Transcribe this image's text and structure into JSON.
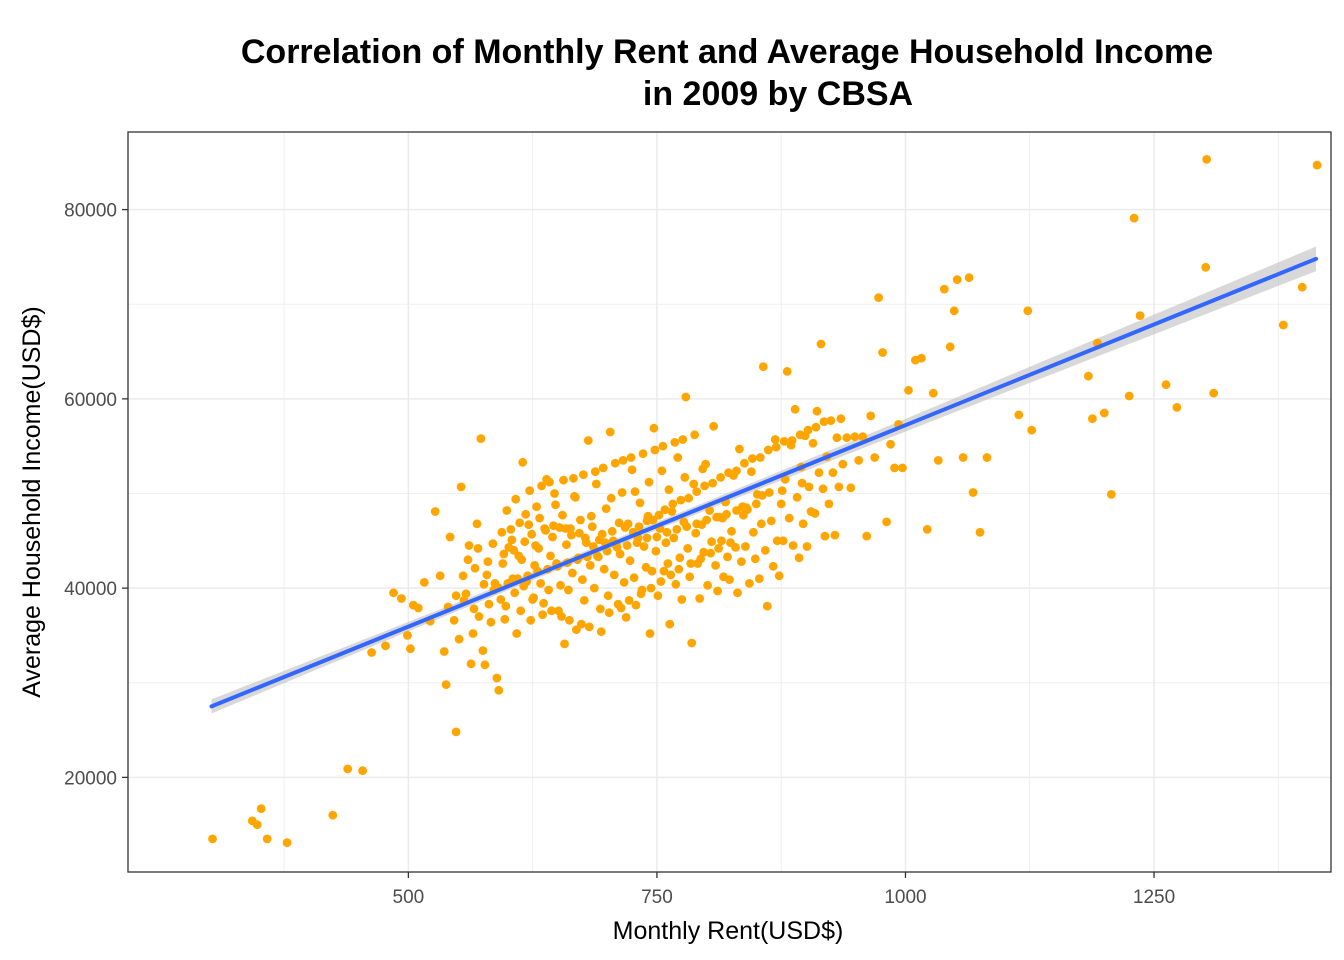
{
  "chart_data": {
    "type": "scatter",
    "title_lines": [
      "Correlation of Monthly Rent and Average Household Income",
      "in 2009 by CBSA"
    ],
    "xlabel": "Monthly Rent(USD$)",
    "ylabel": "Average Household Income(USD$)",
    "xlim": [
      218,
      1428
    ],
    "ylim": [
      10000,
      88200
    ],
    "xticks": [
      500,
      750,
      1000,
      1250
    ],
    "yticks": [
      20000,
      40000,
      60000,
      80000
    ],
    "grid": true,
    "colors": {
      "points": "#FFA500",
      "fit_line": "#3366FF",
      "confidence_band": "#BEBEBE",
      "grid": "#EBEBEB",
      "panel_border": "#333333"
    },
    "fit": {
      "method": "linear",
      "x_range": [
        302,
        1413
      ],
      "start_y": 27500,
      "end_y": 74800,
      "ci_halfwidth_ends": 1300,
      "ci_halfwidth_center": 400,
      "ci_center_x": 680
    },
    "points": [
      [
        303,
        13500
      ],
      [
        343,
        15400
      ],
      [
        348,
        15000
      ],
      [
        352,
        16700
      ],
      [
        358,
        13500
      ],
      [
        378,
        13100
      ],
      [
        424,
        16000
      ],
      [
        439,
        20900
      ],
      [
        454,
        20700
      ],
      [
        463,
        33200
      ],
      [
        477,
        33900
      ],
      [
        485,
        39500
      ],
      [
        493,
        38900
      ],
      [
        499,
        35000
      ],
      [
        502,
        33600
      ],
      [
        505,
        38200
      ],
      [
        510,
        37900
      ],
      [
        516,
        40600
      ],
      [
        522,
        36500
      ],
      [
        527,
        48100
      ],
      [
        532,
        41300
      ],
      [
        536,
        33300
      ],
      [
        538,
        29800
      ],
      [
        540,
        38000
      ],
      [
        542,
        45400
      ],
      [
        546,
        36600
      ],
      [
        548,
        24800
      ],
      [
        551,
        34600
      ],
      [
        553,
        50700
      ],
      [
        555,
        41300
      ],
      [
        558,
        39400
      ],
      [
        561,
        44500
      ],
      [
        563,
        32000
      ],
      [
        565,
        35200
      ],
      [
        567,
        42100
      ],
      [
        569,
        46800
      ],
      [
        571,
        37000
      ],
      [
        573,
        55800
      ],
      [
        575,
        33400
      ],
      [
        577,
        31900
      ],
      [
        579,
        41400
      ],
      [
        581,
        38300
      ],
      [
        583,
        36400
      ],
      [
        585,
        44700
      ],
      [
        587,
        40500
      ],
      [
        589,
        30500
      ],
      [
        591,
        29200
      ],
      [
        593,
        38800
      ],
      [
        595,
        42600
      ],
      [
        597,
        36700
      ],
      [
        599,
        48200
      ],
      [
        601,
        44300
      ],
      [
        603,
        46200
      ],
      [
        605,
        41000
      ],
      [
        607,
        39500
      ],
      [
        609,
        35200
      ],
      [
        611,
        43400
      ],
      [
        613,
        37600
      ],
      [
        615,
        53300
      ],
      [
        617,
        44900
      ],
      [
        619,
        40700
      ],
      [
        621,
        46700
      ],
      [
        623,
        36600
      ],
      [
        625,
        38800
      ],
      [
        627,
        42400
      ],
      [
        629,
        48600
      ],
      [
        631,
        44200
      ],
      [
        633,
        40500
      ],
      [
        635,
        37200
      ],
      [
        637,
        46300
      ],
      [
        639,
        51500
      ],
      [
        641,
        39800
      ],
      [
        643,
        43400
      ],
      [
        645,
        45400
      ],
      [
        647,
        50000
      ],
      [
        649,
        42600
      ],
      [
        651,
        37600
      ],
      [
        653,
        40300
      ],
      [
        655,
        47700
      ],
      [
        657,
        34100
      ],
      [
        659,
        44600
      ],
      [
        661,
        39800
      ],
      [
        663,
        46300
      ],
      [
        665,
        41600
      ],
      [
        667,
        49700
      ],
      [
        669,
        35600
      ],
      [
        671,
        43200
      ],
      [
        673,
        47200
      ],
      [
        675,
        40900
      ],
      [
        677,
        38700
      ],
      [
        679,
        44800
      ],
      [
        681,
        55600
      ],
      [
        683,
        42400
      ],
      [
        685,
        46500
      ],
      [
        687,
        40000
      ],
      [
        689,
        51000
      ],
      [
        691,
        43300
      ],
      [
        693,
        37800
      ],
      [
        695,
        45700
      ],
      [
        697,
        42000
      ],
      [
        699,
        48400
      ],
      [
        701,
        39200
      ],
      [
        703,
        56500
      ],
      [
        705,
        46000
      ],
      [
        707,
        41400
      ],
      [
        709,
        44500
      ],
      [
        711,
        38300
      ],
      [
        713,
        43600
      ],
      [
        715,
        50100
      ],
      [
        717,
        40600
      ],
      [
        719,
        36900
      ],
      [
        721,
        46800
      ],
      [
        723,
        42900
      ],
      [
        725,
        52500
      ],
      [
        727,
        41100
      ],
      [
        729,
        38200
      ],
      [
        731,
        45300
      ],
      [
        733,
        49000
      ],
      [
        735,
        39800
      ],
      [
        737,
        44400
      ],
      [
        739,
        42200
      ],
      [
        741,
        47600
      ],
      [
        743,
        35200
      ],
      [
        745,
        41800
      ],
      [
        747,
        56900
      ],
      [
        749,
        43900
      ],
      [
        751,
        39200
      ],
      [
        753,
        46300
      ],
      [
        755,
        52400
      ],
      [
        757,
        41800
      ],
      [
        759,
        44800
      ],
      [
        761,
        42600
      ],
      [
        763,
        36200
      ],
      [
        765,
        48100
      ],
      [
        767,
        45300
      ],
      [
        769,
        40400
      ],
      [
        771,
        53800
      ],
      [
        773,
        43200
      ],
      [
        775,
        38800
      ],
      [
        777,
        47000
      ],
      [
        779,
        60200
      ],
      [
        781,
        44200
      ],
      [
        783,
        41200
      ],
      [
        785,
        34200
      ],
      [
        787,
        51000
      ],
      [
        789,
        45800
      ],
      [
        791,
        42600
      ],
      [
        793,
        38900
      ],
      [
        795,
        46700
      ],
      [
        797,
        43800
      ],
      [
        799,
        53100
      ],
      [
        801,
        40300
      ],
      [
        803,
        48200
      ],
      [
        805,
        44900
      ],
      [
        807,
        57100
      ],
      [
        809,
        42400
      ],
      [
        811,
        39700
      ],
      [
        813,
        47500
      ],
      [
        815,
        45000
      ],
      [
        817,
        41200
      ],
      [
        819,
        49100
      ],
      [
        821,
        43300
      ],
      [
        823,
        40900
      ],
      [
        825,
        46000
      ],
      [
        827,
        51900
      ],
      [
        829,
        44300
      ],
      [
        831,
        39500
      ],
      [
        833,
        54700
      ],
      [
        835,
        42800
      ],
      [
        837,
        47700
      ],
      [
        839,
        44400
      ],
      [
        841,
        48300
      ],
      [
        843,
        40500
      ],
      [
        845,
        52300
      ],
      [
        847,
        45900
      ],
      [
        849,
        43100
      ],
      [
        851,
        49900
      ],
      [
        853,
        41000
      ],
      [
        855,
        46800
      ],
      [
        857,
        63400
      ],
      [
        859,
        44000
      ],
      [
        861,
        38100
      ],
      [
        863,
        50100
      ],
      [
        865,
        47100
      ],
      [
        867,
        42300
      ],
      [
        869,
        55700
      ],
      [
        871,
        45000
      ],
      [
        873,
        41300
      ],
      [
        875,
        48900
      ],
      [
        877,
        45000
      ],
      [
        879,
        51500
      ],
      [
        881,
        62900
      ],
      [
        883,
        47400
      ],
      [
        885,
        55100
      ],
      [
        887,
        44500
      ],
      [
        889,
        58900
      ],
      [
        891,
        49600
      ],
      [
        893,
        43200
      ],
      [
        895,
        52800
      ],
      [
        897,
        46800
      ],
      [
        899,
        56100
      ],
      [
        901,
        44400
      ],
      [
        903,
        50700
      ],
      [
        905,
        48100
      ],
      [
        907,
        55300
      ],
      [
        909,
        47900
      ],
      [
        911,
        58700
      ],
      [
        913,
        52200
      ],
      [
        915,
        65800
      ],
      [
        917,
        50500
      ],
      [
        919,
        45500
      ],
      [
        921,
        53900
      ],
      [
        923,
        48900
      ],
      [
        925,
        57700
      ],
      [
        927,
        52200
      ],
      [
        929,
        45600
      ],
      [
        931,
        55900
      ],
      [
        933,
        50700
      ],
      [
        935,
        57900
      ],
      [
        937,
        53100
      ],
      [
        941,
        55900
      ],
      [
        945,
        50600
      ],
      [
        949,
        56000
      ],
      [
        953,
        53500
      ],
      [
        957,
        56000
      ],
      [
        961,
        45500
      ],
      [
        965,
        58200
      ],
      [
        969,
        53800
      ],
      [
        973,
        70700
      ],
      [
        977,
        64900
      ],
      [
        981,
        47000
      ],
      [
        985,
        55200
      ],
      [
        989,
        52700
      ],
      [
        993,
        57300
      ],
      [
        997,
        52700
      ],
      [
        1003,
        60900
      ],
      [
        1010,
        64100
      ],
      [
        1016,
        64300
      ],
      [
        1022,
        46200
      ],
      [
        1028,
        60600
      ],
      [
        1033,
        53500
      ],
      [
        1039,
        71600
      ],
      [
        1045,
        65500
      ],
      [
        1049,
        69300
      ],
      [
        1052,
        72600
      ],
      [
        1058,
        53800
      ],
      [
        1064,
        72800
      ],
      [
        1068,
        50100
      ],
      [
        1075,
        45900
      ],
      [
        1082,
        53800
      ],
      [
        1114,
        58300
      ],
      [
        1123,
        69300
      ],
      [
        1127,
        56700
      ],
      [
        1184,
        62400
      ],
      [
        1188,
        57900
      ],
      [
        1193,
        65900
      ],
      [
        1200,
        58500
      ],
      [
        1207,
        49900
      ],
      [
        1225,
        60300
      ],
      [
        1230,
        79100
      ],
      [
        1236,
        68800
      ],
      [
        1262,
        61500
      ],
      [
        1273,
        59100
      ],
      [
        1302,
        73900
      ],
      [
        1303,
        85300
      ],
      [
        1310,
        60600
      ],
      [
        1380,
        67800
      ],
      [
        1399,
        71800
      ],
      [
        1414,
        84700
      ],
      [
        596,
        43600
      ],
      [
        604,
        45100
      ],
      [
        612,
        46900
      ],
      [
        618,
        47800
      ],
      [
        624,
        45700
      ],
      [
        632,
        47400
      ],
      [
        638,
        46100
      ],
      [
        646,
        46600
      ],
      [
        652,
        46400
      ],
      [
        658,
        46300
      ],
      [
        664,
        45600
      ],
      [
        672,
        45800
      ],
      [
        678,
        45300
      ],
      [
        686,
        44400
      ],
      [
        692,
        45100
      ],
      [
        698,
        44800
      ],
      [
        706,
        45000
      ],
      [
        712,
        46900
      ],
      [
        718,
        46400
      ],
      [
        726,
        45900
      ],
      [
        732,
        46500
      ],
      [
        740,
        47100
      ],
      [
        746,
        47200
      ],
      [
        752,
        47700
      ],
      [
        758,
        48300
      ],
      [
        766,
        48900
      ],
      [
        774,
        49300
      ],
      [
        782,
        49500
      ],
      [
        790,
        50200
      ],
      [
        798,
        50800
      ],
      [
        806,
        51100
      ],
      [
        814,
        51700
      ],
      [
        822,
        52200
      ],
      [
        830,
        52400
      ],
      [
        838,
        53200
      ],
      [
        846,
        53700
      ],
      [
        854,
        53800
      ],
      [
        862,
        54600
      ],
      [
        870,
        54900
      ],
      [
        878,
        55500
      ],
      [
        886,
        55600
      ],
      [
        894,
        56200
      ],
      [
        902,
        56700
      ],
      [
        910,
        57000
      ],
      [
        918,
        57600
      ],
      [
        590,
        40100
      ],
      [
        600,
        40500
      ],
      [
        610,
        41000
      ],
      [
        620,
        41300
      ],
      [
        630,
        41800
      ],
      [
        640,
        42000
      ],
      [
        650,
        42300
      ],
      [
        660,
        42700
      ],
      [
        670,
        43000
      ],
      [
        680,
        43300
      ],
      [
        690,
        43400
      ],
      [
        700,
        43900
      ],
      [
        710,
        44300
      ],
      [
        720,
        44500
      ],
      [
        730,
        44800
      ],
      [
        740,
        45300
      ],
      [
        750,
        45400
      ],
      [
        760,
        45900
      ],
      [
        770,
        46200
      ],
      [
        780,
        46500
      ],
      [
        790,
        46800
      ],
      [
        800,
        47200
      ],
      [
        810,
        47500
      ],
      [
        820,
        47800
      ],
      [
        830,
        48200
      ],
      [
        840,
        48500
      ],
      [
        850,
        48900
      ],
      [
        560,
        43000
      ],
      [
        570,
        44200
      ],
      [
        580,
        42800
      ],
      [
        594,
        45900
      ],
      [
        606,
        44000
      ],
      [
        616,
        40200
      ],
      [
        626,
        39000
      ],
      [
        636,
        38400
      ],
      [
        644,
        37600
      ],
      [
        654,
        37000
      ],
      [
        662,
        36600
      ],
      [
        674,
        36200
      ],
      [
        682,
        35900
      ],
      [
        694,
        35400
      ],
      [
        702,
        37400
      ],
      [
        714,
        37900
      ],
      [
        722,
        38700
      ],
      [
        734,
        39400
      ],
      [
        744,
        40000
      ],
      [
        754,
        40700
      ],
      [
        764,
        41400
      ],
      [
        772,
        42000
      ],
      [
        784,
        42600
      ],
      [
        794,
        43100
      ],
      [
        804,
        43700
      ],
      [
        812,
        44200
      ],
      [
        824,
        44800
      ],
      [
        608,
        49400
      ],
      [
        622,
        50300
      ],
      [
        634,
        50800
      ],
      [
        642,
        51200
      ],
      [
        656,
        51400
      ],
      [
        666,
        51600
      ],
      [
        676,
        52000
      ],
      [
        688,
        52300
      ],
      [
        696,
        52700
      ],
      [
        708,
        53200
      ],
      [
        716,
        53500
      ],
      [
        724,
        53800
      ],
      [
        736,
        54200
      ],
      [
        748,
        54600
      ],
      [
        756,
        55000
      ],
      [
        768,
        55400
      ],
      [
        776,
        55700
      ],
      [
        788,
        56200
      ],
      [
        548,
        39200
      ],
      [
        556,
        38700
      ],
      [
        566,
        37800
      ],
      [
        576,
        40400
      ],
      [
        586,
        39800
      ],
      [
        598,
        38100
      ],
      [
        614,
        43000
      ],
      [
        628,
        44500
      ],
      [
        648,
        48800
      ],
      [
        668,
        49600
      ],
      [
        684,
        47600
      ],
      [
        704,
        49500
      ],
      [
        728,
        50200
      ],
      [
        742,
        51200
      ],
      [
        762,
        50400
      ],
      [
        778,
        51700
      ],
      [
        796,
        52600
      ],
      [
        816,
        47400
      ],
      [
        836,
        48600
      ],
      [
        856,
        49800
      ],
      [
        876,
        50300
      ],
      [
        896,
        51100
      ]
    ]
  }
}
